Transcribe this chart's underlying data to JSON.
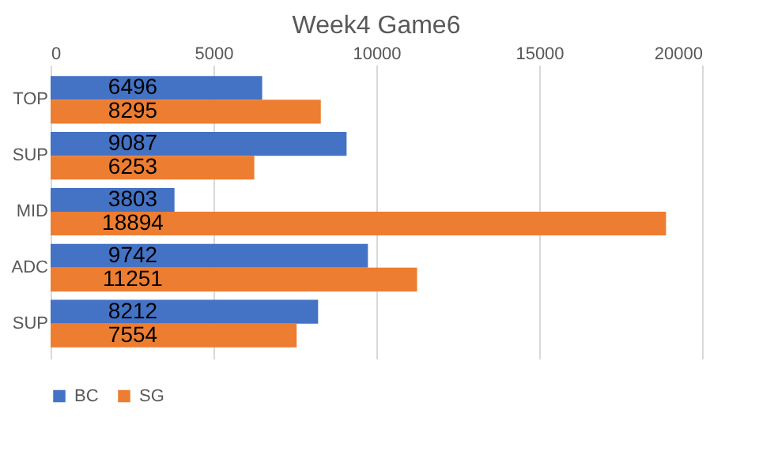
{
  "chart_data": {
    "type": "bar",
    "orientation": "horizontal",
    "title": "Week4 Game6",
    "categories": [
      "TOP",
      "SUP",
      "MID",
      "ADC",
      "SUP"
    ],
    "series": [
      {
        "name": "BC",
        "color": "#4472c4",
        "values": [
          6496,
          9087,
          3803,
          9742,
          8212
        ]
      },
      {
        "name": "SG",
        "color": "#ed7d31",
        "values": [
          8295,
          6253,
          18894,
          11251,
          7554
        ]
      }
    ],
    "xlim": [
      0,
      20000
    ],
    "xticks": [
      0,
      5000,
      10000,
      15000,
      20000
    ],
    "grid": "x",
    "legend": "bottom",
    "data_labels": true
  }
}
